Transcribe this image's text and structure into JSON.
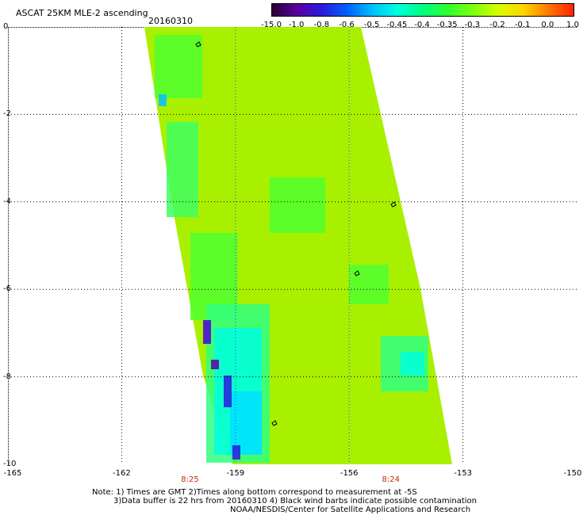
{
  "header": {
    "title": "ASCAT 25KM MLE-2 ascending",
    "date": "20160310"
  },
  "colorbar": {
    "labels": [
      "-15.0",
      "-1.0",
      "-0.8",
      "-0.6",
      "-0.5",
      "-0.45",
      "-0.4",
      "-0.35",
      "-0.3",
      "-0.2",
      "-0.1",
      "0.0",
      "1.0"
    ],
    "colors": [
      "#2a0033",
      "#5a00a0",
      "#2a1bdc",
      "#0060ff",
      "#00c0ff",
      "#00ffe0",
      "#00ff80",
      "#30ff30",
      "#7dff10",
      "#d6ff00",
      "#ffd400",
      "#ff7800",
      "#ff2400"
    ]
  },
  "map": {
    "lon_range": [
      -165,
      -150
    ],
    "lat_range": [
      -10,
      0
    ],
    "x_ticks": [
      "-165",
      "-162",
      "-159",
      "-156",
      "-153",
      "-150"
    ],
    "y_ticks": [
      "0",
      "-2",
      "-4",
      "-6",
      "-8",
      "-10"
    ],
    "time_labels": [
      {
        "lon": -160.2,
        "text": "8:25"
      },
      {
        "lon": -154.9,
        "text": "8:24"
      }
    ],
    "swath_background": "#a8f000"
  },
  "notes": {
    "line1": "Note: 1) Times are GMT 2)Times along bottom correspond to measurement at -5S",
    "line2": "3)Data buffer is 22 hrs from 20160310 4) Black wind barbs indicate possible contamination",
    "line3": "NOAA/NESDIS/Center for Satellite Applications and Research"
  }
}
